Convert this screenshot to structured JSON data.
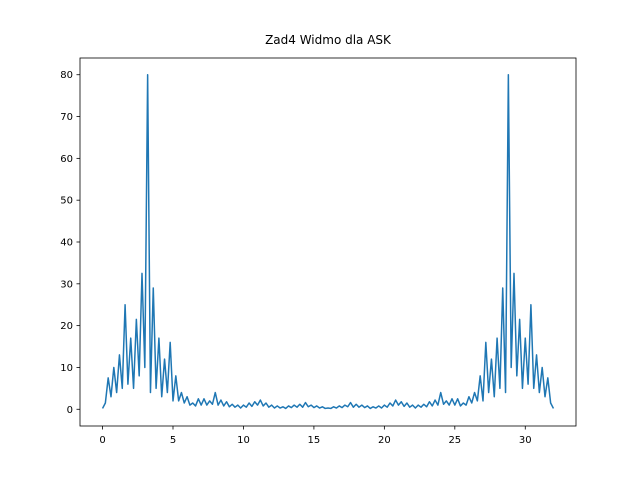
{
  "chart_data": {
    "type": "line",
    "title": "Zad4 Widmo dla ASK",
    "x": [
      0,
      0.2,
      0.4,
      0.6,
      0.8,
      1,
      1.2,
      1.4,
      1.6,
      1.8,
      2,
      2.2,
      2.4,
      2.6,
      2.8,
      3,
      3.2,
      3.4,
      3.6,
      3.8,
      4,
      4.2,
      4.4,
      4.6,
      4.8,
      5,
      5.2,
      5.4,
      5.6,
      5.8,
      6,
      6.2,
      6.4,
      6.6,
      6.8,
      7,
      7.2,
      7.4,
      7.6,
      7.8,
      8,
      8.2,
      8.4,
      8.6,
      8.8,
      9,
      9.2,
      9.4,
      9.6,
      9.8,
      10,
      10.2,
      10.4,
      10.6,
      10.8,
      11,
      11.2,
      11.4,
      11.6,
      11.8,
      12,
      12.2,
      12.4,
      12.6,
      12.8,
      13,
      13.2,
      13.4,
      13.6,
      13.8,
      14,
      14.2,
      14.4,
      14.6,
      14.8,
      15,
      15.2,
      15.4,
      15.6,
      15.8,
      16,
      16.2,
      16.4,
      16.6,
      16.8,
      17,
      17.2,
      17.4,
      17.6,
      17.8,
      18,
      18.2,
      18.4,
      18.6,
      18.8,
      19,
      19.2,
      19.4,
      19.6,
      19.8,
      20,
      20.2,
      20.4,
      20.6,
      20.8,
      21,
      21.2,
      21.4,
      21.6,
      21.8,
      22,
      22.2,
      22.4,
      22.6,
      22.8,
      23,
      23.2,
      23.4,
      23.6,
      23.8,
      24,
      24.2,
      24.4,
      24.6,
      24.8,
      25,
      25.2,
      25.4,
      25.6,
      25.8,
      26,
      26.2,
      26.4,
      26.6,
      26.8,
      27,
      27.2,
      27.4,
      27.6,
      27.8,
      28,
      28.2,
      28.4,
      28.6,
      28.8,
      29,
      29.2,
      29.4,
      29.6,
      29.8,
      30,
      30.2,
      30.4,
      30.6,
      30.8,
      31,
      31.2,
      31.4,
      31.6,
      31.8,
      32
    ],
    "series": [
      {
        "color": "#1f77b4",
        "values": [
          0.2,
          1.5,
          7.5,
          3,
          10,
          4,
          13,
          5,
          25,
          6,
          17,
          5,
          21.5,
          8,
          32.5,
          10,
          80,
          4,
          29,
          5,
          17,
          3,
          12,
          4,
          16,
          2,
          8,
          2,
          4,
          1.5,
          3,
          1,
          1.5,
          0.8,
          2.5,
          1,
          2.5,
          1,
          2,
          1.2,
          4,
          1,
          2.2,
          0.8,
          1.8,
          0.6,
          1.2,
          0.5,
          1,
          0.3,
          1,
          0.5,
          1.5,
          0.7,
          1.8,
          1,
          2.2,
          0.8,
          1.5,
          0.5,
          1,
          0.3,
          0.8,
          0.3,
          0.6,
          0.2,
          0.8,
          0.4,
          1,
          0.5,
          1.2,
          0.5,
          1.6,
          0.6,
          1,
          0.4,
          0.8,
          0.3,
          0.6,
          0.2,
          0.3,
          0.2,
          0.6,
          0.3,
          0.8,
          0.4,
          1,
          0.6,
          1.6,
          0.5,
          1.2,
          0.5,
          1,
          0.4,
          0.8,
          0.2,
          0.6,
          0.3,
          0.8,
          0.3,
          1,
          0.5,
          1.5,
          0.8,
          2.2,
          1,
          1.8,
          0.7,
          1.5,
          0.5,
          1,
          0.3,
          1,
          0.5,
          1.2,
          0.6,
          1.8,
          0.8,
          2.2,
          1,
          4,
          1.2,
          2,
          1,
          2.5,
          1,
          2.5,
          0.8,
          1.5,
          1,
          3,
          1.5,
          4,
          2,
          8,
          2,
          16,
          4,
          12,
          3,
          17,
          5,
          29,
          4,
          80,
          10,
          32.5,
          8,
          21.5,
          5,
          17,
          6,
          25,
          5,
          13,
          4,
          10,
          3,
          7.5,
          1.5,
          0.2
        ]
      }
    ],
    "xlim": [
      -1.6,
      33.6
    ],
    "xticks": [
      0,
      5,
      10,
      15,
      20,
      25,
      30
    ],
    "ylim": [
      -4,
      84
    ],
    "yticks": [
      0,
      10,
      20,
      30,
      40,
      50,
      60,
      70,
      80
    ],
    "grid": false
  }
}
